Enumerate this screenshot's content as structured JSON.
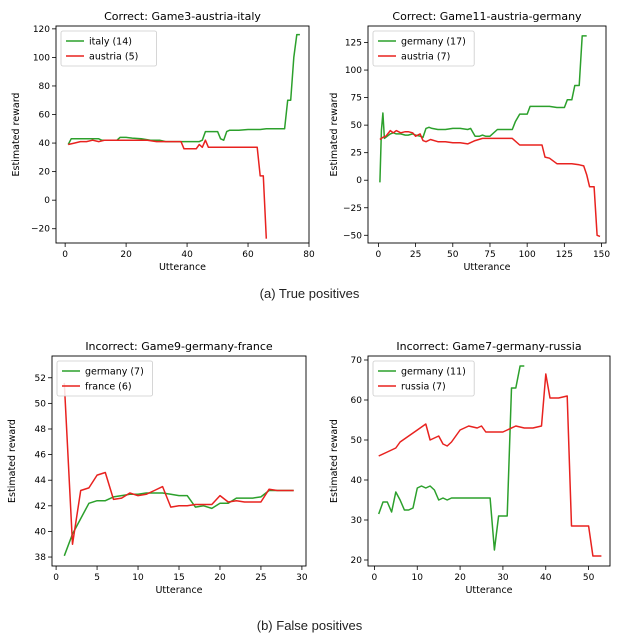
{
  "captions": [
    "(a) True positives",
    "(b) False positives"
  ],
  "chart_data": [
    {
      "type": "line",
      "title": "Correct: Game3-austria-italy",
      "xlabel": "Utterance",
      "ylabel": "Estimated reward",
      "xlim": [
        -3,
        80
      ],
      "ylim": [
        -30,
        122
      ],
      "xticks": [
        0,
        20,
        40,
        60,
        80
      ],
      "yticks": [
        -20,
        0,
        20,
        40,
        60,
        80,
        100,
        120
      ],
      "legend": "top-left",
      "series": [
        {
          "name": "italy (14)",
          "color": "#2ca02c",
          "x": [
            1,
            2,
            3,
            5,
            7,
            9,
            11,
            12,
            14,
            15,
            17,
            18,
            20,
            22,
            25,
            28,
            31,
            33,
            35,
            37,
            39,
            40,
            42,
            44,
            45,
            46,
            48,
            50,
            51,
            52,
            53,
            54,
            55,
            57,
            60,
            64,
            66,
            68,
            70,
            72,
            73,
            74,
            75,
            76,
            77
          ],
          "y": [
            39,
            43,
            43,
            43,
            43,
            43,
            43,
            42,
            42,
            42,
            42,
            44,
            44,
            43.5,
            43,
            42,
            42,
            41,
            41,
            41,
            41,
            41,
            41,
            41,
            42,
            48,
            48,
            48,
            43,
            42,
            48,
            49,
            49,
            49,
            49.5,
            49.5,
            50,
            50,
            50,
            50,
            70,
            70,
            100,
            116,
            116
          ]
        },
        {
          "name": "austria (5)",
          "color": "#e8221f",
          "x": [
            1,
            3,
            5,
            7,
            9,
            11,
            13,
            15,
            17,
            19,
            21,
            23,
            25,
            27,
            30,
            33,
            36,
            38,
            39,
            40,
            42,
            43,
            44,
            45,
            46,
            47,
            48,
            50,
            55,
            60,
            62,
            63,
            64,
            65,
            66
          ],
          "y": [
            39,
            40,
            41,
            41,
            42,
            41,
            42,
            42,
            42,
            42,
            42,
            42,
            42,
            42,
            41,
            41,
            41,
            41,
            36,
            36,
            36,
            36,
            39,
            37,
            42,
            37,
            37,
            37,
            37,
            37,
            37,
            37,
            17,
            17,
            -27
          ]
        }
      ]
    },
    {
      "type": "line",
      "title": "Correct: Game11-austria-germany",
      "xlabel": "Utterance",
      "ylabel": "Estimated reward",
      "xlim": [
        -7,
        153
      ],
      "ylim": [
        -57,
        140
      ],
      "xticks": [
        0,
        25,
        50,
        75,
        100,
        125,
        150
      ],
      "yticks": [
        -50,
        -25,
        0,
        25,
        50,
        75,
        100,
        125
      ],
      "legend": "top-left",
      "series": [
        {
          "name": "germany (17)",
          "color": "#2ca02c",
          "x": [
            1,
            2,
            3,
            4,
            6,
            8,
            10,
            12,
            15,
            18,
            20,
            23,
            25,
            28,
            30,
            32,
            34,
            36,
            40,
            45,
            50,
            55,
            60,
            62,
            65,
            68,
            70,
            72,
            75,
            80,
            85,
            90,
            92,
            95,
            100,
            102,
            105,
            110,
            115,
            120,
            125,
            127,
            130,
            132,
            135,
            137,
            140
          ],
          "y": [
            -2,
            45,
            61,
            38,
            40,
            42,
            43,
            42,
            42,
            41,
            41,
            42,
            41,
            40,
            39,
            47,
            48,
            47,
            46,
            46,
            47,
            47,
            46,
            47,
            40,
            40,
            41,
            40,
            40,
            46,
            46,
            46,
            53,
            60,
            60,
            67,
            67,
            67,
            67,
            66,
            66,
            73,
            73,
            86,
            86,
            131,
            131
          ]
        },
        {
          "name": "austria (7)",
          "color": "#e8221f",
          "x": [
            1,
            3,
            5,
            8,
            10,
            12,
            15,
            18,
            20,
            23,
            25,
            28,
            30,
            32,
            35,
            40,
            45,
            50,
            55,
            60,
            65,
            70,
            75,
            80,
            90,
            95,
            100,
            105,
            110,
            112,
            115,
            120,
            125,
            130,
            135,
            138,
            140,
            142,
            145,
            147,
            149
          ],
          "y": [
            37,
            39,
            40,
            45,
            43,
            45,
            43,
            44,
            44,
            43,
            40,
            42,
            36,
            35,
            37,
            35,
            35,
            34,
            34,
            33,
            36,
            38,
            38,
            38,
            38,
            32,
            32,
            32,
            32,
            21,
            20,
            15,
            15,
            15,
            14,
            13,
            5,
            -6,
            -6,
            -50,
            -51
          ]
        }
      ]
    },
    {
      "type": "line",
      "title": "Incorrect: Game9-germany-france",
      "xlabel": "Utterance",
      "ylabel": "Estimated reward",
      "xlim": [
        -0.5,
        30.5
      ],
      "ylim": [
        37.3,
        53.7
      ],
      "xticks": [
        0,
        5,
        10,
        15,
        20,
        25,
        30
      ],
      "yticks": [
        38,
        40,
        42,
        44,
        46,
        48,
        50,
        52
      ],
      "legend": "top-left",
      "series": [
        {
          "name": "germany (7)",
          "color": "#2ca02c",
          "x": [
            1,
            2,
            3,
            4,
            5,
            6,
            7,
            8,
            9,
            10,
            11,
            12,
            13,
            14,
            15,
            16,
            17,
            18,
            19,
            20,
            21,
            22,
            23,
            24,
            25,
            26,
            27,
            28,
            29
          ],
          "y": [
            38.1,
            39.8,
            41,
            42.2,
            42.4,
            42.4,
            42.7,
            42.8,
            42.9,
            42.9,
            43,
            43,
            43,
            42.9,
            42.8,
            42.8,
            41.9,
            42,
            41.8,
            42.2,
            42.2,
            42.6,
            42.6,
            42.6,
            42.7,
            43.2,
            43.2,
            43.2,
            43.2
          ]
        },
        {
          "name": "france (6)",
          "color": "#e8221f",
          "x": [
            1,
            2,
            3,
            4,
            5,
            6,
            7,
            8,
            9,
            10,
            11,
            12,
            13,
            14,
            15,
            16,
            17,
            18,
            19,
            20,
            21,
            22,
            23,
            24,
            25,
            26,
            27,
            28,
            29
          ],
          "y": [
            51.6,
            39,
            43.2,
            43.4,
            44.4,
            44.6,
            42.5,
            42.6,
            43,
            42.8,
            42.9,
            43.2,
            43.5,
            41.9,
            42,
            42,
            42.1,
            42.1,
            42.1,
            42.8,
            42.3,
            42.4,
            42.3,
            42.3,
            42.3,
            43.3,
            43.2,
            43.2,
            43.2
          ]
        }
      ]
    },
    {
      "type": "line",
      "title": "Incorrect: Game7-germany-russia",
      "xlabel": "Utterance",
      "ylabel": "Estimated reward",
      "xlim": [
        -1.5,
        55
      ],
      "ylim": [
        18.5,
        71
      ],
      "xticks": [
        0,
        10,
        20,
        30,
        40,
        50
      ],
      "yticks": [
        20,
        30,
        40,
        50,
        60,
        70
      ],
      "legend": "top-left",
      "series": [
        {
          "name": "germany (11)",
          "color": "#2ca02c",
          "x": [
            1,
            2,
            3,
            4,
            5,
            6,
            7,
            8,
            9,
            10,
            11,
            12,
            13,
            14,
            15,
            16,
            17,
            18,
            19,
            20,
            21,
            22,
            23,
            24,
            25,
            26,
            27,
            28,
            29,
            30,
            31,
            32,
            33,
            34,
            35
          ],
          "y": [
            31.5,
            34.5,
            34.5,
            32,
            37,
            35,
            32.5,
            32.5,
            33,
            38,
            38.5,
            38,
            38.5,
            37.5,
            35,
            35.5,
            35,
            35.5,
            35.5,
            35.5,
            35.5,
            35.5,
            35.5,
            35.5,
            35.5,
            35.5,
            35.5,
            22.5,
            31,
            31,
            31,
            63,
            63,
            68.5,
            68.5
          ]
        },
        {
          "name": "russia (7)",
          "color": "#e8221f",
          "x": [
            1,
            3,
            5,
            6,
            8,
            10,
            12,
            13,
            14,
            15,
            16,
            17,
            18,
            19,
            20,
            22,
            24,
            25,
            26,
            27,
            28,
            30,
            31,
            33,
            35,
            37,
            39,
            40,
            41,
            43,
            45,
            46,
            47,
            50,
            51,
            52,
            53
          ],
          "y": [
            46,
            47,
            48,
            49.5,
            51,
            52.5,
            54,
            50,
            50.5,
            51,
            49,
            48.5,
            49.5,
            51,
            52.5,
            53.5,
            53,
            53.5,
            52,
            52,
            52,
            52,
            52.5,
            53.5,
            53,
            53,
            53.5,
            66.5,
            60.5,
            60.5,
            61,
            28.5,
            28.5,
            28.5,
            21,
            21,
            21
          ]
        }
      ]
    }
  ]
}
